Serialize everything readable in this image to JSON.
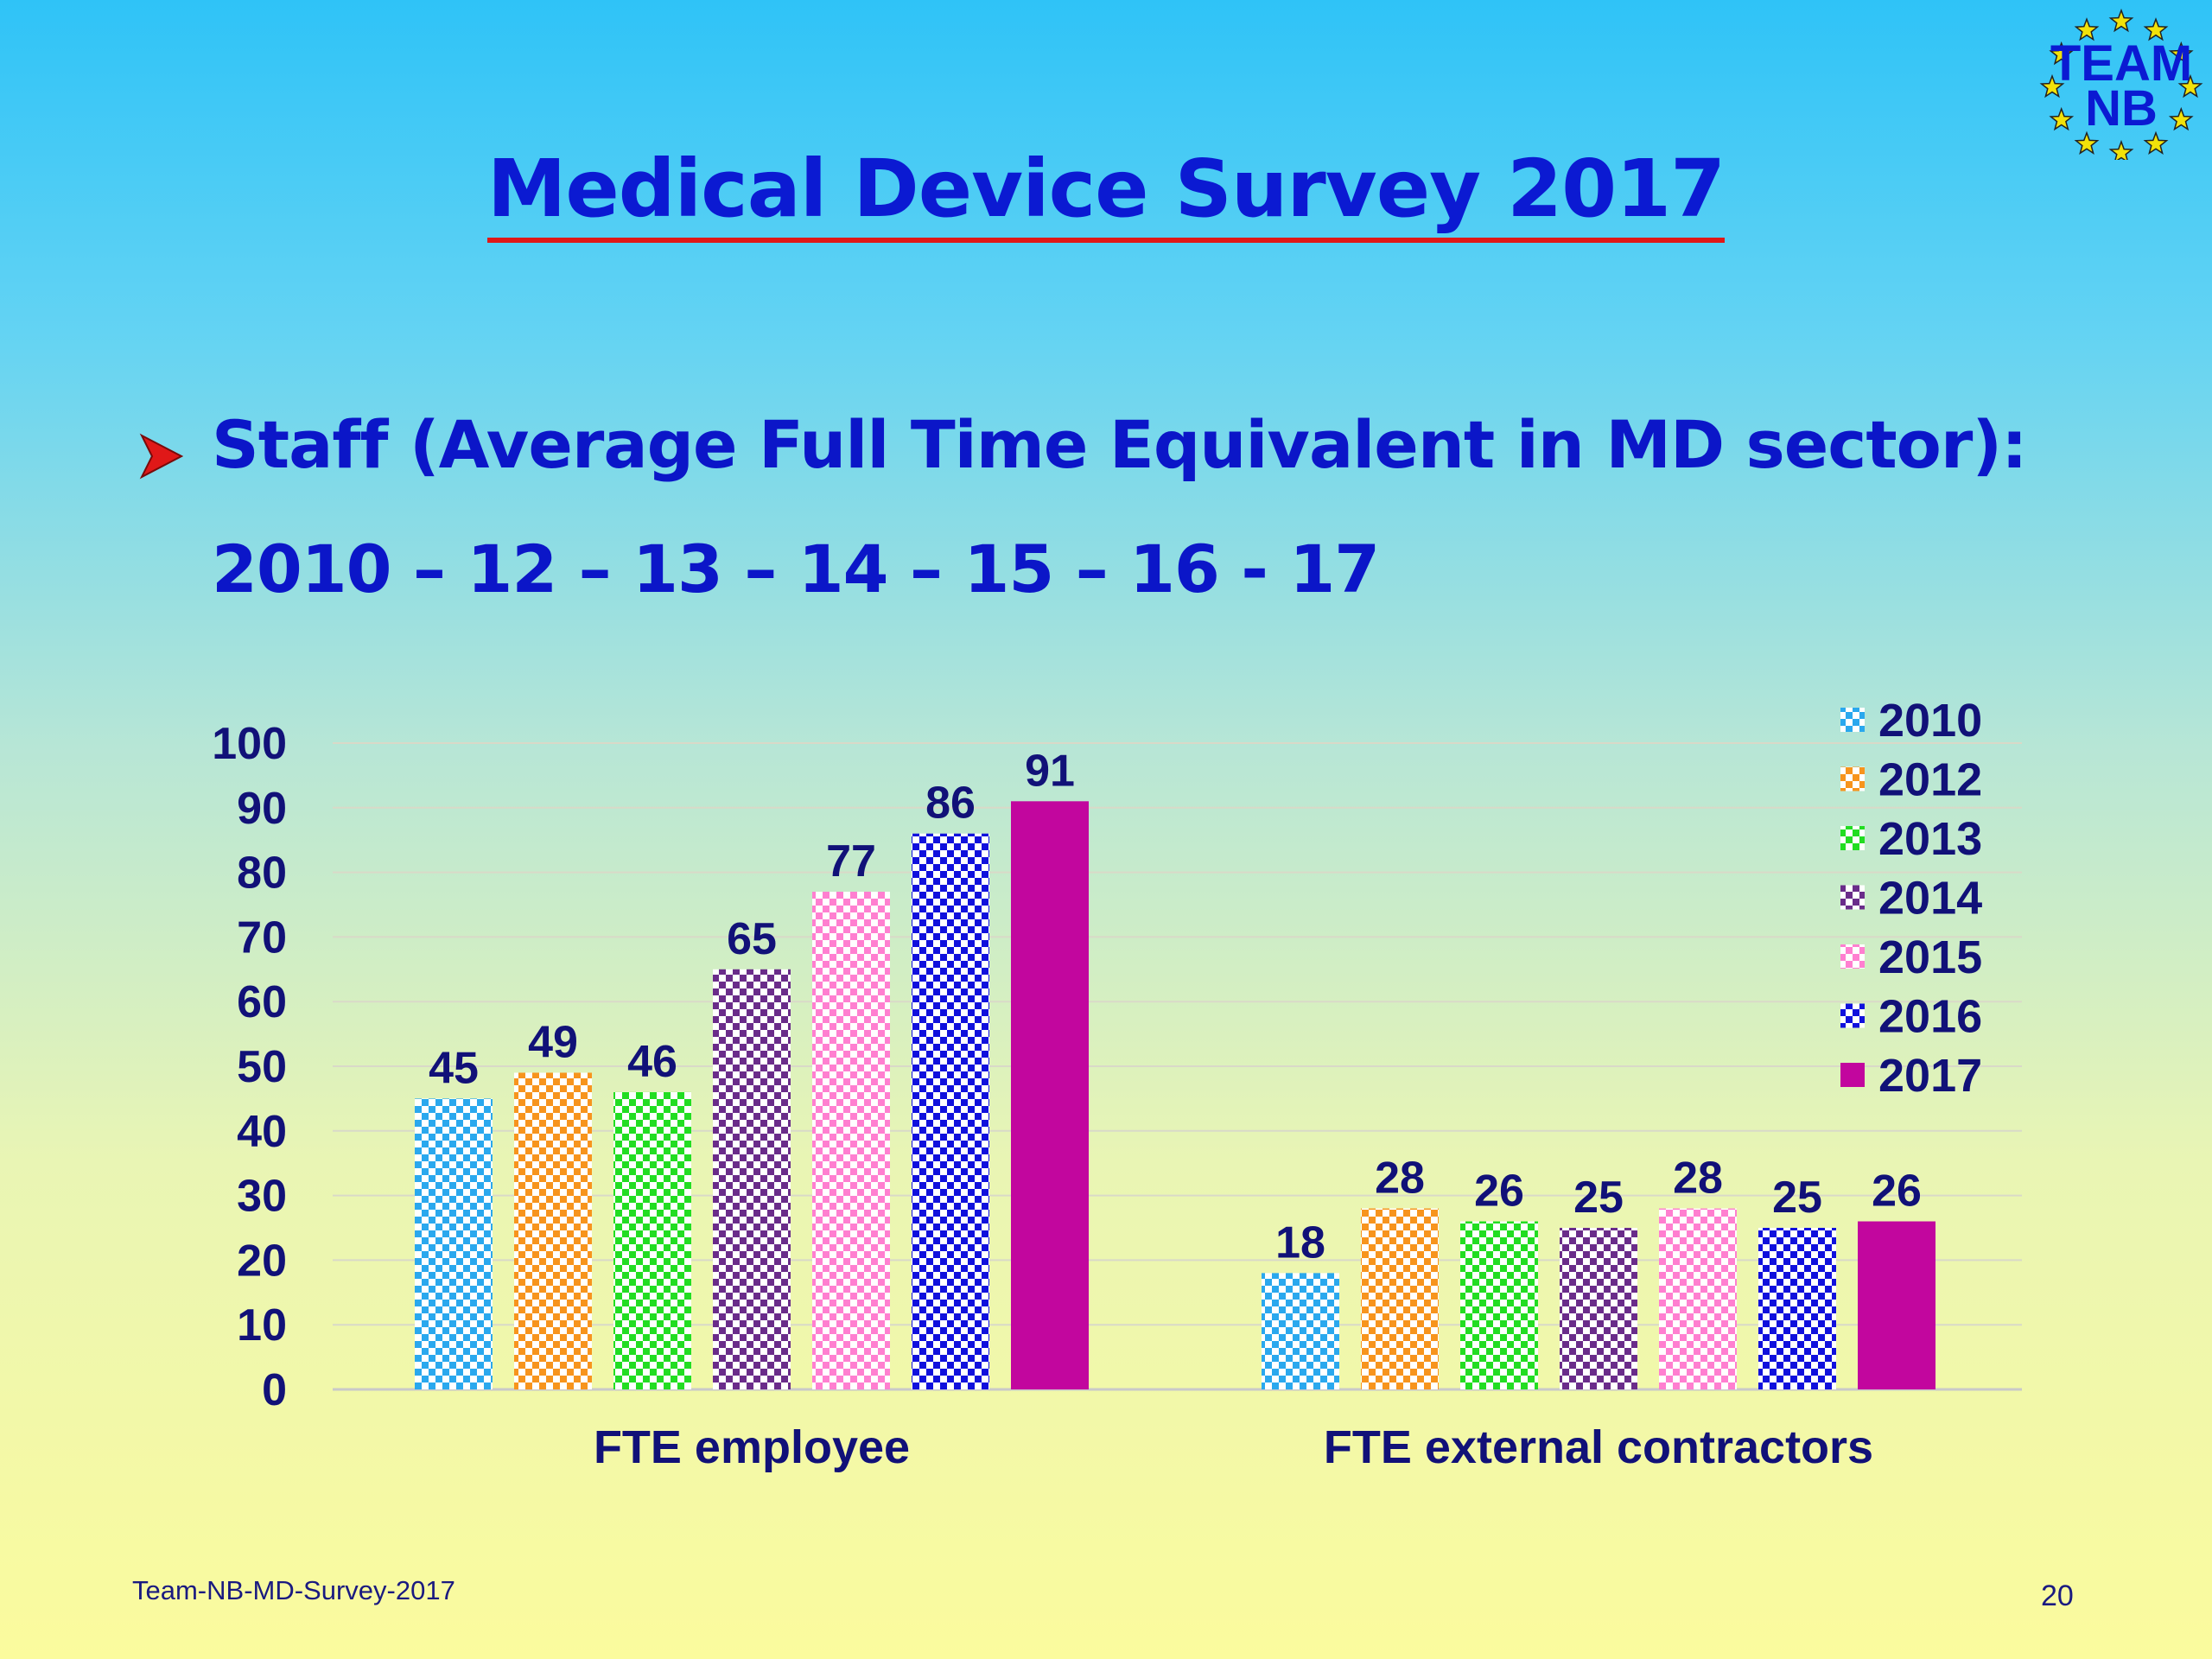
{
  "slide": {
    "title": "Medical Device Survey 2017",
    "subtitle_line1": "Staff (Average Full Time Equivalent in MD sector):",
    "subtitle_line2": "2010 – 12 – 13 – 14 – 15 – 16 - 17",
    "footer_left": "Team-NB-MD-Survey-2017",
    "page_number": "20",
    "logo_text_line1": "TEAM",
    "logo_text_line2": "NB",
    "bullet_icon": "arrow-bullet-icon",
    "colors": {
      "title": "#0b1ad2",
      "title_underline": "#e01818",
      "subtitle": "#0b16c8",
      "bullet": "#e01818",
      "logo_text": "#0b1ad2",
      "logo_stars": "#f2e20a"
    }
  },
  "chart_data": {
    "type": "bar",
    "categories": [
      "FTE employee",
      "FTE external contractors"
    ],
    "series": [
      {
        "name": "2010",
        "values": [
          45,
          18
        ],
        "color": "#2aa8ee",
        "pattern": "checker"
      },
      {
        "name": "2012",
        "values": [
          49,
          28
        ],
        "color": "#f7941d",
        "pattern": "checker"
      },
      {
        "name": "2013",
        "values": [
          46,
          26
        ],
        "color": "#22dd22",
        "pattern": "checker"
      },
      {
        "name": "2014",
        "values": [
          65,
          25
        ],
        "color": "#6a2c8a",
        "pattern": "checker"
      },
      {
        "name": "2015",
        "values": [
          77,
          28
        ],
        "color": "#ff7fd0",
        "pattern": "checker"
      },
      {
        "name": "2016",
        "values": [
          86,
          25
        ],
        "color": "#1010dd",
        "pattern": "checker"
      },
      {
        "name": "2017",
        "values": [
          91,
          26
        ],
        "color": "#c2069e",
        "pattern": "solid"
      }
    ],
    "yticks": [
      0,
      10,
      20,
      30,
      40,
      50,
      60,
      70,
      80,
      90,
      100
    ],
    "ylim": [
      0,
      100
    ],
    "data_labels": true,
    "grid": true,
    "legend_position": "top-right",
    "title": "",
    "xlabel": "",
    "ylabel": ""
  }
}
